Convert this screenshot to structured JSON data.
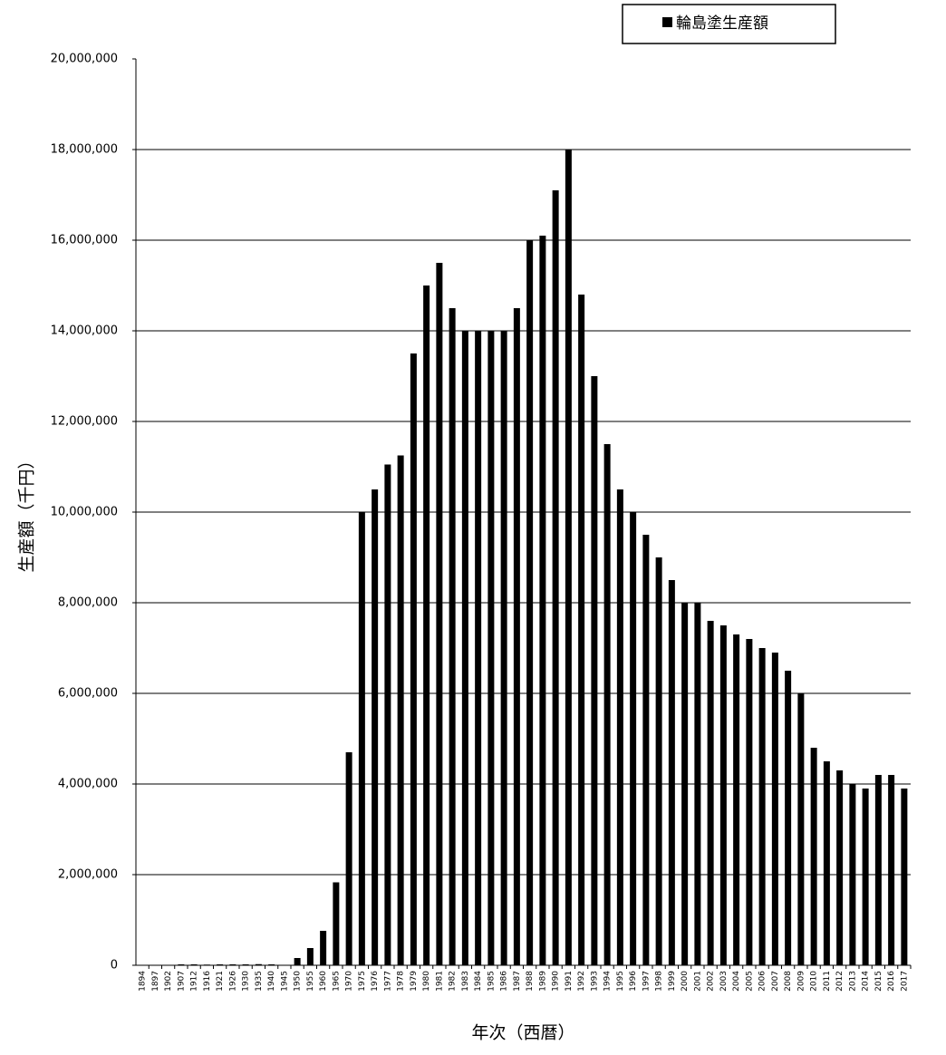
{
  "chart_data": {
    "type": "bar",
    "x_label": "年次（西暦）",
    "y_label": "生産額（千円）",
    "categories": [
      "1894",
      "1897",
      "1902",
      "1907",
      "1912",
      "1916",
      "1921",
      "1926",
      "1930",
      "1935",
      "1940",
      "1945",
      "1950",
      "1955",
      "1960",
      "1965",
      "1970",
      "1975",
      "1976",
      "1977",
      "1978",
      "1979",
      "1980",
      "1981",
      "1982",
      "1983",
      "1984",
      "1985",
      "1986",
      "1987",
      "1988",
      "1989",
      "1990",
      "1991",
      "1992",
      "1993",
      "1994",
      "1995",
      "1996",
      "1997",
      "1998",
      "1999",
      "2000",
      "2001",
      "2002",
      "2003",
      "2004",
      "2005",
      "2006",
      "2007",
      "2008",
      "2009",
      "2010",
      "2011",
      "2012",
      "2013",
      "2014",
      "2015",
      "2016",
      "2017"
    ],
    "series": [
      {
        "name": "輪島塗生産額",
        "color": "#000000",
        "values": [
          5000,
          8000,
          10000,
          20000,
          20000,
          15000,
          20000,
          20000,
          20000,
          25000,
          20000,
          10000,
          160000,
          380000,
          760000,
          1830000,
          4700000,
          10000000,
          10500000,
          11050000,
          11250000,
          13500000,
          15000000,
          15500000,
          14500000,
          14000000,
          14000000,
          14000000,
          14000000,
          14500000,
          16000000,
          16100000,
          17100000,
          18000000,
          14800000,
          13000000,
          11500000,
          10500000,
          10000000,
          9500000,
          9000000,
          8500000,
          8000000,
          8000000,
          7600000,
          7500000,
          7300000,
          7200000,
          7000000,
          6900000,
          6500000,
          6000000,
          4800000,
          4500000,
          4300000,
          4000000,
          3900000,
          4200000,
          4200000,
          3900000
        ]
      }
    ],
    "ylim": [
      0,
      20000000
    ],
    "yticks": [
      0,
      {
        "value": 2000000,
        "label": "2,000,000"
      },
      {
        "value": 4000000,
        "label": "4,000,000"
      },
      {
        "value": 6000000,
        "label": "6,000,000"
      },
      {
        "value": 8000000,
        "label": "8,000,000"
      },
      {
        "value": 10000000,
        "label": "10,000,000"
      },
      {
        "value": 12000000,
        "label": "12,000,000"
      },
      {
        "value": 14000000,
        "label": "14,000,000"
      },
      {
        "value": 16000000,
        "label": "16,000,000"
      },
      {
        "value": 18000000,
        "label": "18,000,000"
      },
      {
        "value": 20000000,
        "label": "20,000,000"
      }
    ],
    "grid": true,
    "legend": "top-right"
  }
}
